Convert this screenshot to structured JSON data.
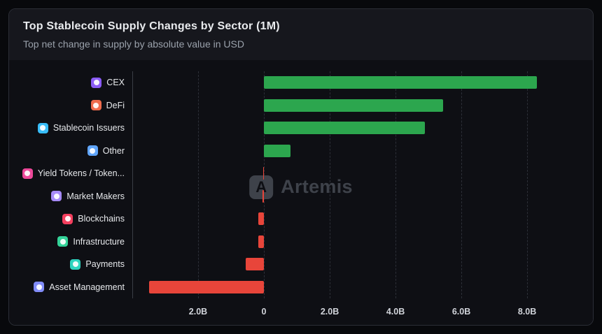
{
  "header": {
    "title": "Top Stablecoin Supply Changes by Sector (1M)",
    "subtitle": "Top net change in supply by absolute value in USD"
  },
  "watermark": {
    "text": "Artemis",
    "logo_glyph": "A"
  },
  "colors": {
    "positive": "#2ca64e",
    "negative": "#e8453a",
    "page_background": "#08090c",
    "card_header_background": "#16171d",
    "chart_background": "#0e0f14"
  },
  "chart_data": {
    "type": "bar",
    "orientation": "horizontal",
    "title": "Top Stablecoin Supply Changes by Sector (1M)",
    "subtitle": "Top net change in supply by absolute value in USD",
    "unit": "billions USD",
    "categories": [
      "CEX",
      "DeFi",
      "Stablecoin Issuers",
      "Other",
      "Yield Tokens / Token...",
      "Market Makers",
      "Blockchains",
      "Infrastructure",
      "Payments",
      "Asset Management"
    ],
    "values": [
      8.3,
      5.45,
      4.9,
      0.8,
      -0.03,
      -0.05,
      -0.18,
      -0.18,
      -0.55,
      -3.5
    ],
    "icon_names": [
      "cex-icon",
      "defi-icon",
      "stablecoin-issuers-icon",
      "other-icon",
      "yield-tokens-icon",
      "market-makers-icon",
      "blockchains-icon",
      "infrastructure-icon",
      "payments-icon",
      "asset-management-icon"
    ],
    "icon_colors": [
      "#8b5cf6",
      "#ef6c4d",
      "#38bdf8",
      "#60a5fa",
      "#ec4899",
      "#a78bfa",
      "#f43f5e",
      "#34d399",
      "#2dd4bf",
      "#818cf8"
    ],
    "xlim": [
      -4.0,
      9.7
    ],
    "ticks": [
      {
        "value": -2,
        "label": "2.0B"
      },
      {
        "value": 0,
        "label": "0"
      },
      {
        "value": 2,
        "label": "2.0B"
      },
      {
        "value": 4,
        "label": "4.0B"
      },
      {
        "value": 6,
        "label": "6.0B"
      },
      {
        "value": 8,
        "label": "8.0B"
      }
    ],
    "grid": "dashed-vertical",
    "legend": "none"
  }
}
